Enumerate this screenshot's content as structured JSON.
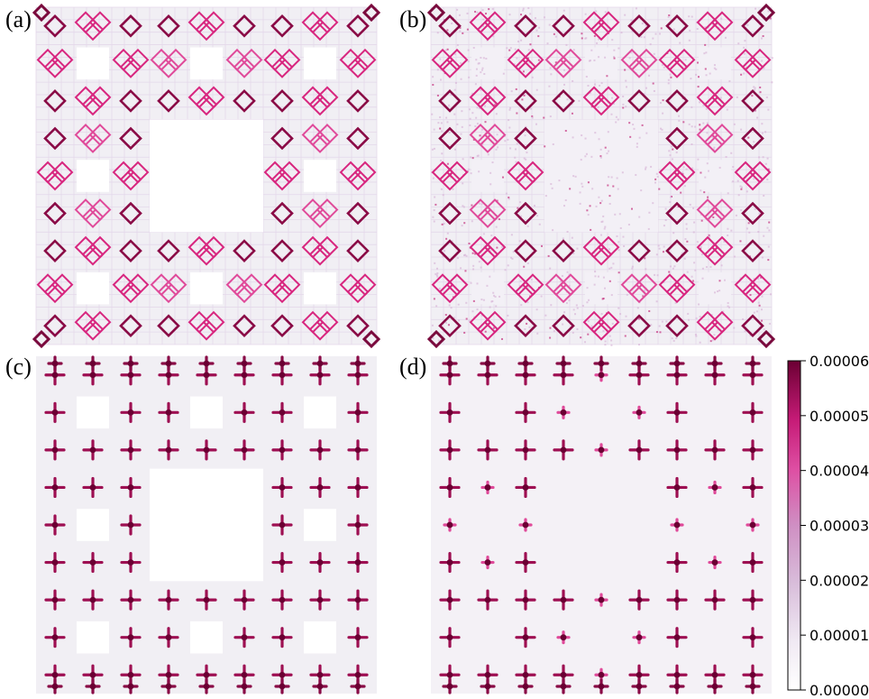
{
  "panels": [
    {
      "label": "(a)",
      "pattern": "diamonds_corners"
    },
    {
      "label": "(b)",
      "pattern": "diamonds_noise"
    },
    {
      "label": "(c)",
      "pattern": "crosses_full"
    },
    {
      "label": "(d)",
      "pattern": "crosses_sparse"
    }
  ],
  "colorbar": {
    "ticks": [
      "0.00006",
      "0.00005",
      "0.00004",
      "0.00003",
      "0.00002",
      "0.00001",
      "0.00000"
    ],
    "vmin": 0,
    "vmax": 6e-05
  },
  "colors": {
    "cmap": [
      "#ffffff",
      "#f0e9f3",
      "#d9bedb",
      "#cf8fc3",
      "#de4fa3",
      "#dd2f8e",
      "#b31166",
      "#6b0033"
    ],
    "background_gray": "#f1eff4",
    "hole_white": "#ffffff"
  }
}
